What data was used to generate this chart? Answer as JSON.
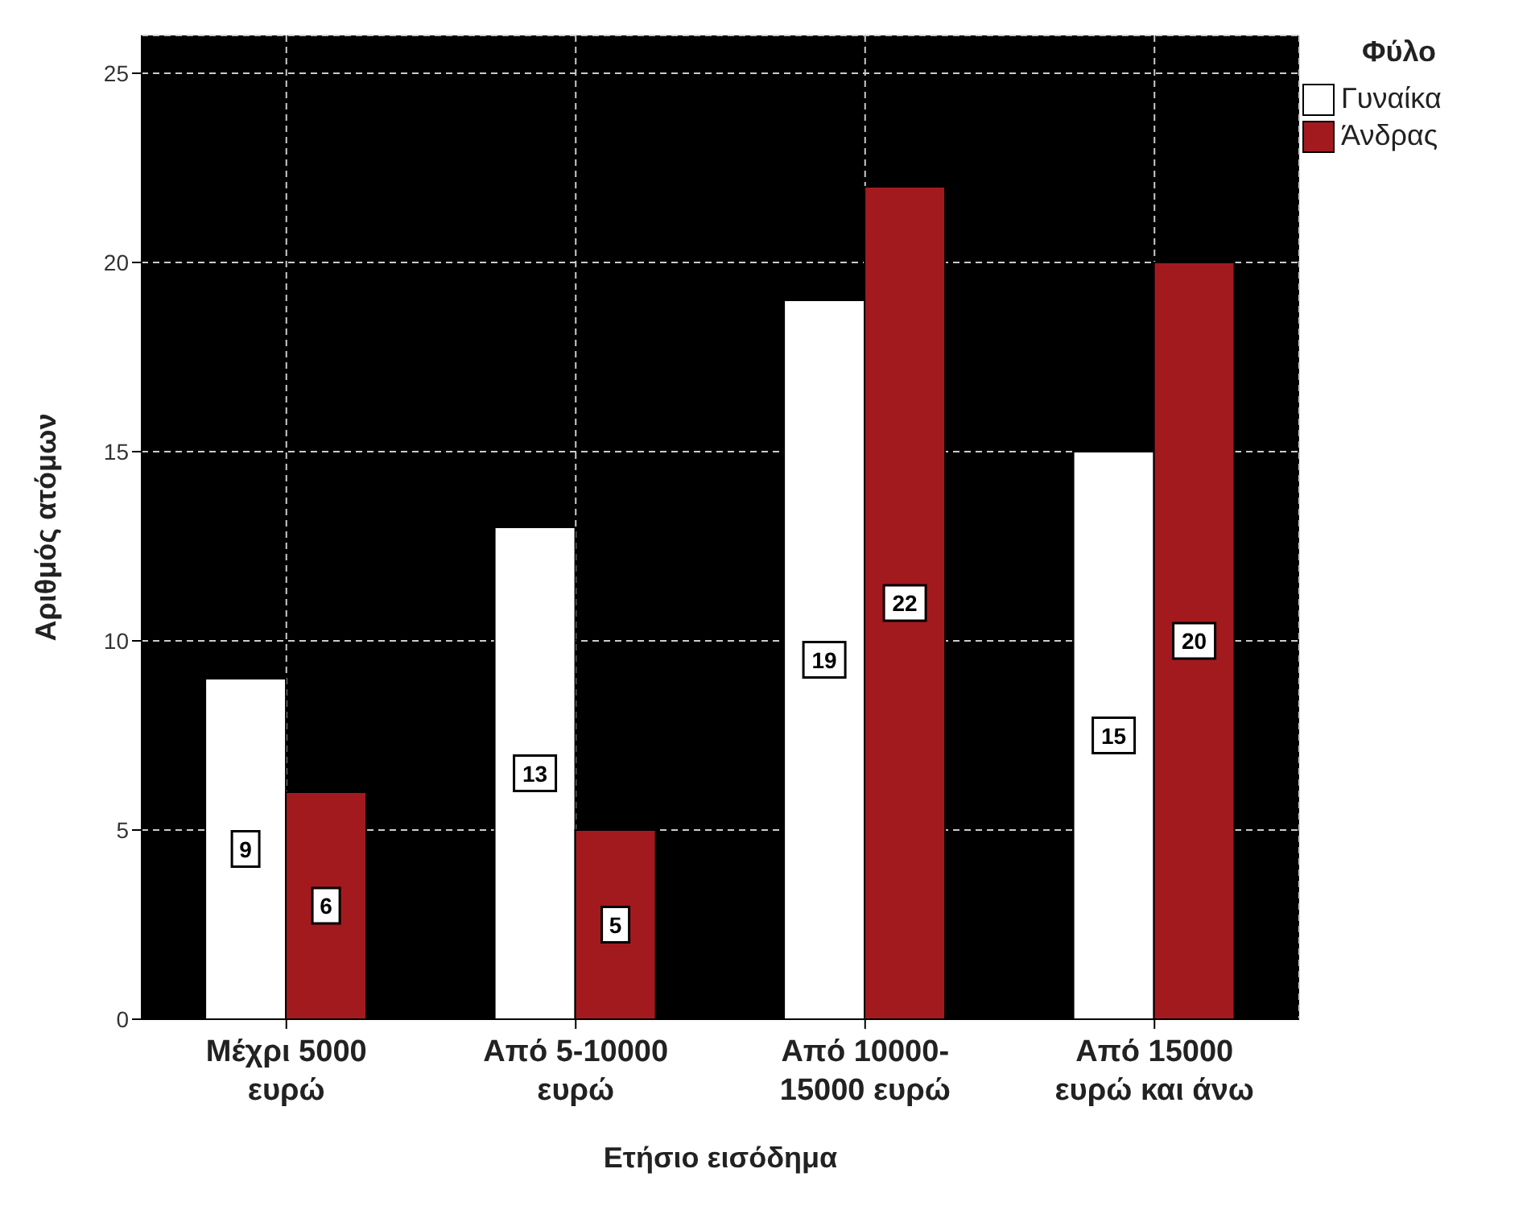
{
  "chart_data": {
    "type": "bar",
    "xlabel": "Ετήσιο εισόδημα",
    "ylabel": "Αριθμός ατόμων",
    "legend_title": "Φύλο",
    "categories": [
      "Μέχρι 5000 ευρώ",
      "Από 5-10000 ευρώ",
      "Από 10000-15000 ευρώ",
      "Από 15000 ευρώ και άνω"
    ],
    "series": [
      {
        "name": "Γυναίκα",
        "color": "#ffffff",
        "values": [
          9,
          13,
          19,
          15
        ]
      },
      {
        "name": "Άνδρας",
        "color": "#a31a1e",
        "values": [
          6,
          5,
          22,
          20
        ]
      }
    ],
    "ylim": [
      0,
      26
    ],
    "yticks": [
      0,
      5,
      10,
      15,
      20,
      25
    ],
    "grid": true,
    "legend": "top right",
    "data_labels": true
  }
}
